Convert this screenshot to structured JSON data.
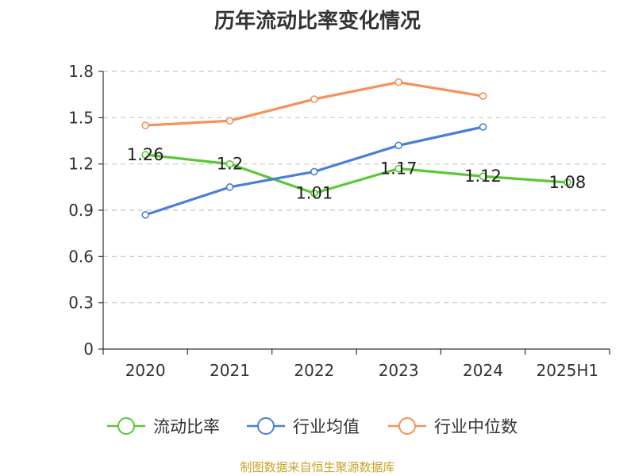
{
  "chart_data": {
    "type": "line",
    "title": "历年流动比率变化情况",
    "categories": [
      "2020",
      "2021",
      "2022",
      "2023",
      "2024",
      "2025H1"
    ],
    "ylim": [
      0,
      1.8
    ],
    "yticks": [
      "0",
      "0.3",
      "0.6",
      "0.9",
      "1.2",
      "1.5",
      "1.8"
    ],
    "grid": true,
    "legend_position": "bottom",
    "series": [
      {
        "name": "流动比率",
        "color": "#5bc733",
        "values": [
          1.26,
          1.2,
          1.01,
          1.17,
          1.12,
          1.08
        ],
        "labels": [
          "1.26",
          "1.2",
          "1.01",
          "1.17",
          "1.12",
          "1.08"
        ]
      },
      {
        "name": "行业均值",
        "color": "#4a7fd6",
        "values": [
          0.87,
          1.05,
          1.15,
          1.32,
          1.44,
          null
        ]
      },
      {
        "name": "行业中位数",
        "color": "#f5915a",
        "values": [
          1.45,
          1.48,
          1.62,
          1.73,
          1.64,
          null
        ]
      }
    ]
  },
  "source_note": "制图数据来自恒生聚源数据库"
}
